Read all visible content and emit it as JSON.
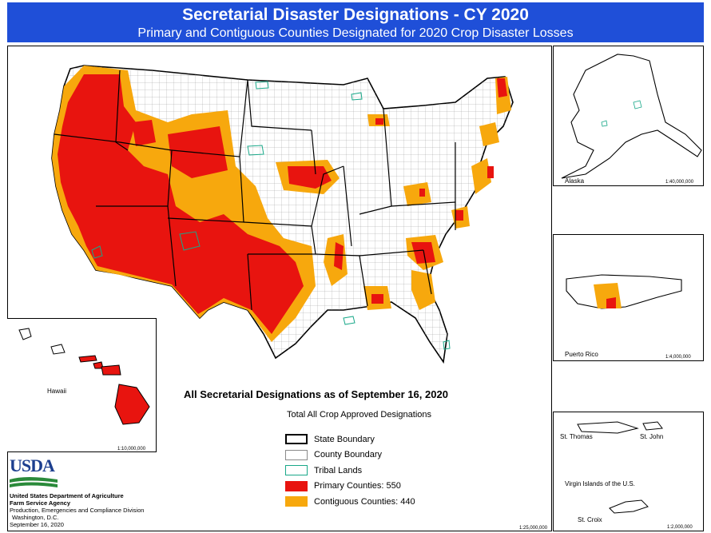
{
  "header": {
    "title": "Secretarial Disaster Designations - CY 2020",
    "subtitle": "Primary and Contiguous Counties Designated for 2020 Crop Disaster Losses"
  },
  "panels": {
    "alaska": {
      "label": "Alaska",
      "scale": "1:40,000,000"
    },
    "puerto_rico": {
      "label": "Puerto Rico",
      "scale": "1:4,000,000"
    },
    "virgin_islands": {
      "label": "Virgin Islands of the U.S.",
      "st_thomas": "St. Thomas",
      "st_john": "St. John",
      "st_croix": "St. Croix",
      "scale": "1:2,000,000"
    },
    "hawaii": {
      "label": "Hawaii",
      "scale": "1:10,000,000"
    },
    "main_scale": "1:25,000,000"
  },
  "summary": {
    "title": "All Secretarial Designations as of September 16, 2020",
    "subtitle": "Total All Crop Approved Designations"
  },
  "legend": {
    "state": "State Boundary",
    "county": "County Boundary",
    "tribal": "Tribal  Lands",
    "primary": "Primary Counties: 550",
    "contiguous": "Contiguous Counties: 440"
  },
  "colors": {
    "primary": "#e8140f",
    "contiguous": "#f7a80d",
    "tribal": "#19a889",
    "header": "#1f4fd8"
  },
  "agency": {
    "logo_text": "USDA",
    "line1": "United States Department of Agriculture",
    "line2": "Farm Service Agency",
    "line3": "Production, Emergencies and Compliance Division",
    "line4": "Washington, D.C.",
    "line5": "September 16, 2020"
  }
}
